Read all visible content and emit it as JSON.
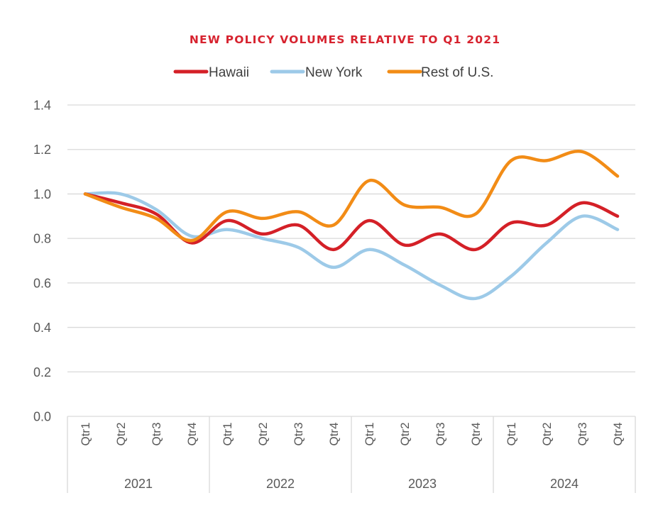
{
  "chart_data": {
    "type": "line",
    "title": "NEW POLICY VOLUMES RELATIVE TO Q1 2021",
    "title_color": "#D7232F",
    "xlabel": "",
    "ylabel": "",
    "ylim": [
      0.0,
      1.4
    ],
    "yticks": [
      0.0,
      0.2,
      0.4,
      0.6,
      0.8,
      1.0,
      1.2,
      1.4
    ],
    "ytick_labels": [
      "0.0",
      "0.2",
      "0.4",
      "0.6",
      "0.8",
      "1.0",
      "1.2",
      "1.4"
    ],
    "grid": true,
    "smooth": true,
    "legend_position": "top-center",
    "groups": [
      {
        "label": "2021",
        "categories": [
          "Qtr1",
          "Qtr2",
          "Qtr3",
          "Qtr4"
        ]
      },
      {
        "label": "2022",
        "categories": [
          "Qtr1",
          "Qtr2",
          "Qtr3",
          "Qtr4"
        ]
      },
      {
        "label": "2023",
        "categories": [
          "Qtr1",
          "Qtr2",
          "Qtr3",
          "Qtr4"
        ]
      },
      {
        "label": "2024",
        "categories": [
          "Qtr1",
          "Qtr2",
          "Qtr3",
          "Qtr4"
        ]
      }
    ],
    "series": [
      {
        "name": "Hawaii",
        "color": "#D42027",
        "values": [
          1.0,
          0.96,
          0.91,
          0.78,
          0.88,
          0.82,
          0.86,
          0.75,
          0.88,
          0.77,
          0.82,
          0.75,
          0.87,
          0.86,
          0.96,
          0.9
        ]
      },
      {
        "name": "New York",
        "color": "#9DCAE8",
        "values": [
          1.0,
          1.0,
          0.93,
          0.81,
          0.84,
          0.8,
          0.76,
          0.67,
          0.75,
          0.68,
          0.59,
          0.53,
          0.63,
          0.78,
          0.9,
          0.84
        ]
      },
      {
        "name": "Rest of U.S.",
        "color": "#F28C16",
        "values": [
          1.0,
          0.94,
          0.89,
          0.79,
          0.92,
          0.89,
          0.92,
          0.86,
          1.06,
          0.95,
          0.94,
          0.91,
          1.15,
          1.15,
          1.19,
          1.08
        ]
      }
    ]
  }
}
